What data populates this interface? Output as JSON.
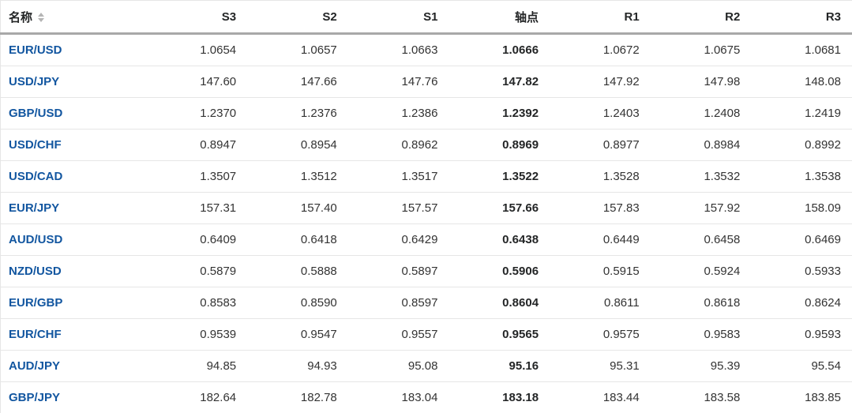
{
  "table": {
    "columns": [
      {
        "key": "name",
        "label": "名称"
      },
      {
        "key": "s3",
        "label": "S3"
      },
      {
        "key": "s2",
        "label": "S2"
      },
      {
        "key": "s1",
        "label": "S1"
      },
      {
        "key": "pivot",
        "label": "轴点"
      },
      {
        "key": "r1",
        "label": "R1"
      },
      {
        "key": "r2",
        "label": "R2"
      },
      {
        "key": "r3",
        "label": "R3"
      }
    ],
    "rows": [
      {
        "name": "EUR/USD",
        "s3": "1.0654",
        "s2": "1.0657",
        "s1": "1.0663",
        "pivot": "1.0666",
        "r1": "1.0672",
        "r2": "1.0675",
        "r3": "1.0681"
      },
      {
        "name": "USD/JPY",
        "s3": "147.60",
        "s2": "147.66",
        "s1": "147.76",
        "pivot": "147.82",
        "r1": "147.92",
        "r2": "147.98",
        "r3": "148.08"
      },
      {
        "name": "GBP/USD",
        "s3": "1.2370",
        "s2": "1.2376",
        "s1": "1.2386",
        "pivot": "1.2392",
        "r1": "1.2403",
        "r2": "1.2408",
        "r3": "1.2419"
      },
      {
        "name": "USD/CHF",
        "s3": "0.8947",
        "s2": "0.8954",
        "s1": "0.8962",
        "pivot": "0.8969",
        "r1": "0.8977",
        "r2": "0.8984",
        "r3": "0.8992"
      },
      {
        "name": "USD/CAD",
        "s3": "1.3507",
        "s2": "1.3512",
        "s1": "1.3517",
        "pivot": "1.3522",
        "r1": "1.3528",
        "r2": "1.3532",
        "r3": "1.3538"
      },
      {
        "name": "EUR/JPY",
        "s3": "157.31",
        "s2": "157.40",
        "s1": "157.57",
        "pivot": "157.66",
        "r1": "157.83",
        "r2": "157.92",
        "r3": "158.09"
      },
      {
        "name": "AUD/USD",
        "s3": "0.6409",
        "s2": "0.6418",
        "s1": "0.6429",
        "pivot": "0.6438",
        "r1": "0.6449",
        "r2": "0.6458",
        "r3": "0.6469"
      },
      {
        "name": "NZD/USD",
        "s3": "0.5879",
        "s2": "0.5888",
        "s1": "0.5897",
        "pivot": "0.5906",
        "r1": "0.5915",
        "r2": "0.5924",
        "r3": "0.5933"
      },
      {
        "name": "EUR/GBP",
        "s3": "0.8583",
        "s2": "0.8590",
        "s1": "0.8597",
        "pivot": "0.8604",
        "r1": "0.8611",
        "r2": "0.8618",
        "r3": "0.8624"
      },
      {
        "name": "EUR/CHF",
        "s3": "0.9539",
        "s2": "0.9547",
        "s1": "0.9557",
        "pivot": "0.9565",
        "r1": "0.9575",
        "r2": "0.9583",
        "r3": "0.9593"
      },
      {
        "name": "AUD/JPY",
        "s3": "94.85",
        "s2": "94.93",
        "s1": "95.08",
        "pivot": "95.16",
        "r1": "95.31",
        "r2": "95.39",
        "r3": "95.54"
      },
      {
        "name": "GBP/JPY",
        "s3": "182.64",
        "s2": "182.78",
        "s1": "183.04",
        "pivot": "183.18",
        "r1": "183.44",
        "r2": "183.58",
        "r3": "183.85"
      }
    ]
  },
  "icons": {
    "name_header_sort": "sort-arrows-icon"
  },
  "colors": {
    "link_blue": "#1256a0",
    "header_text": "#232526",
    "cell_text": "#333333",
    "pivot_text": "#232526",
    "row_border": "#e6e6e6",
    "header_border": "#a8a8a8",
    "sort_icon": "#b5b5b5",
    "background": "#ffffff"
  }
}
